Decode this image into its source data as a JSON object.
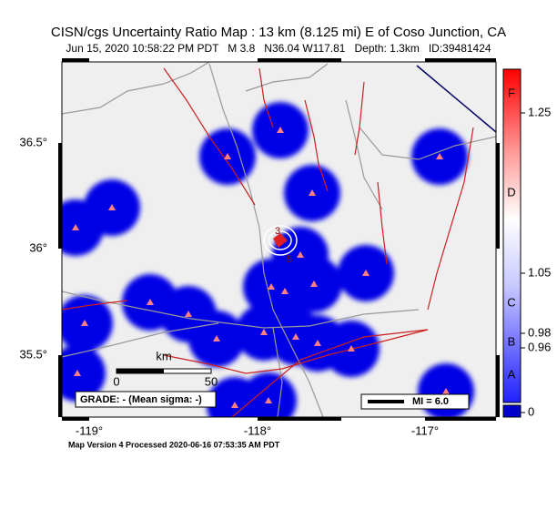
{
  "header": {
    "title": "CISN/cgs Uncertainty Ratio Map : 13 km (8.125 mi) E of Coso Junction, CA",
    "subtitle": "Jun 15, 2020 10:58:22 PM PDT   M 3.8   N36.04 W117.81   Depth: 1.3km   ID:39481424"
  },
  "map": {
    "lat_labels": [
      "36.5°",
      "36°",
      "35.5°"
    ],
    "lon_labels": [
      "-119°",
      "-118°",
      "-117°"
    ],
    "contour_labels": [
      "3",
      "5"
    ],
    "scale_bar": {
      "unit": "km",
      "start": "0",
      "end": "50"
    },
    "grade": "GRADE: - (Mean sigma: -)",
    "mi_legend": "MI = 6.0"
  },
  "colorbar": {
    "letters": [
      "F",
      "D",
      "C",
      "B",
      "A"
    ],
    "values": [
      "1.25",
      "1.05",
      "0.98",
      "0.96",
      "0"
    ]
  },
  "footer": "Map Version 4 Processed 2020-06-16 07:53:35 AM PDT"
}
